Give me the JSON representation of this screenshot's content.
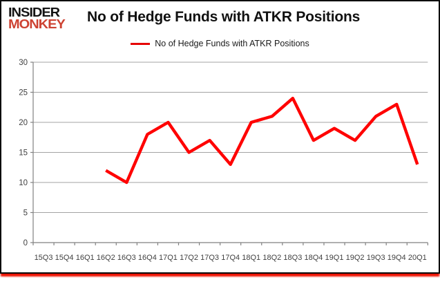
{
  "logo": {
    "line1": "INSIDER",
    "line2": "MONKEY"
  },
  "header": {
    "title": "No of Hedge Funds with ATKR Positions"
  },
  "legend": {
    "label": "No of Hedge Funds with ATKR Positions",
    "swatch_color": "#e60000"
  },
  "colors": {
    "line": "#ff0000",
    "grid": "#a3a3a3",
    "axis": "#808080",
    "tick_labels": "#404040",
    "title": "#111111",
    "logo_text": "#141414",
    "logo_accent": "#cd4232",
    "card_border": "#0a0a0a",
    "bottom_glow": "#ee1505"
  },
  "chart_data": {
    "type": "line",
    "title": "No of Hedge Funds with ATKR Positions",
    "categories": [
      "15Q3",
      "15Q4",
      "16Q1",
      "16Q2",
      "16Q3",
      "16Q4",
      "17Q1",
      "17Q2",
      "17Q3",
      "17Q4",
      "18Q1",
      "18Q2",
      "18Q3",
      "18Q4",
      "19Q1",
      "19Q2",
      "19Q3",
      "19Q4",
      "20Q1"
    ],
    "series": [
      {
        "name": "No of Hedge Funds with ATKR Positions",
        "values": [
          null,
          null,
          null,
          12,
          10,
          18,
          20,
          15,
          17,
          13,
          20,
          21,
          24,
          17,
          19,
          17,
          21,
          23,
          13
        ]
      }
    ],
    "xlabel": "",
    "ylabel": "",
    "ylim": [
      0,
      30
    ],
    "yticks": [
      0,
      5,
      10,
      15,
      20,
      25,
      30
    ],
    "grid": true,
    "legend_position": "top-center",
    "line_width": 4.4
  }
}
